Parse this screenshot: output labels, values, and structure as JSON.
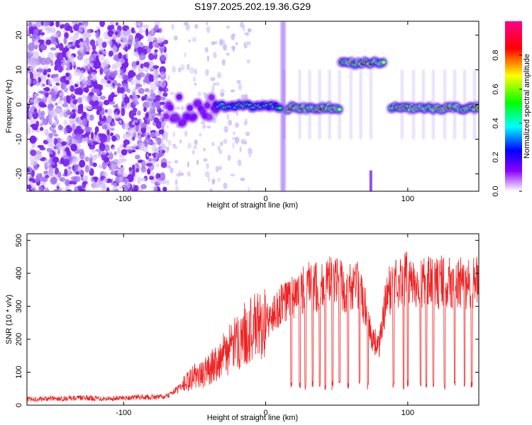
{
  "title": "S197.2025.202.19.36.G29",
  "chart_data": [
    {
      "type": "heatmap",
      "xlabel": "Height of straight line (km)",
      "ylabel": "Frequency (Hz)",
      "xlim": [
        -168,
        150
      ],
      "ylim": [
        -25,
        24
      ],
      "xticks": [
        -100,
        0,
        100
      ],
      "yticks": [
        -20,
        -10,
        0,
        10,
        20
      ],
      "colorbar": {
        "label": "Normalized spectral amplitude",
        "range": [
          0.0,
          1.0
        ],
        "ticks": [
          0.0,
          0.2,
          0.4,
          0.6,
          0.8
        ],
        "tick_labels": [
          "0.0",
          "0.2",
          "0.4",
          "0.6",
          "0.8"
        ],
        "colors": [
          "#ffffff",
          "#8a00ff",
          "#0000ff",
          "#00ffff",
          "#00ff00",
          "#ffff00",
          "#ff0000",
          "#ff0088"
        ]
      },
      "features": [
        {
          "x_range": [
            -168,
            -70
          ],
          "freq_range": [
            -25,
            24
          ],
          "amplitude": 0.05
        },
        {
          "x_range": [
            -70,
            -35
          ],
          "freq_center": -1.5,
          "amplitude": 0.3
        },
        {
          "x_range": [
            -35,
            10
          ],
          "freq_center": -0.5,
          "amplitude": 0.6
        },
        {
          "x_range": [
            15,
            52
          ],
          "freq_center": -1,
          "amplitude": 0.9
        },
        {
          "x_range": [
            53,
            83
          ],
          "freq_center": 12,
          "amplitude": 0.9
        },
        {
          "x_range": [
            88,
            150
          ],
          "freq_center": -1,
          "amplitude": 0.9
        }
      ]
    },
    {
      "type": "line",
      "xlabel": "Height of straight line (km)",
      "ylabel": "SNR (10 * v/v)",
      "xlim": [
        -168,
        150
      ],
      "ylim": [
        0,
        520
      ],
      "xticks": [
        -100,
        0,
        100
      ],
      "yticks": [
        0,
        100,
        200,
        300,
        400,
        500
      ],
      "color": "#ee2222",
      "series": [
        {
          "x": [
            -168,
            -150,
            -130,
            -110,
            -90,
            -70,
            -62,
            -55,
            -50,
            -45,
            -40,
            -35,
            -30,
            -25,
            -20,
            -15,
            -10,
            -5,
            0,
            5,
            10,
            15,
            20,
            25,
            30,
            35,
            40,
            45,
            50,
            55,
            60,
            65,
            70,
            75,
            80,
            85,
            90,
            95,
            100,
            105,
            110,
            115,
            120,
            125,
            130,
            135,
            140,
            145,
            150
          ],
          "y": [
            18,
            20,
            22,
            20,
            24,
            25,
            50,
            70,
            90,
            90,
            110,
            130,
            150,
            170,
            190,
            215,
            230,
            240,
            250,
            270,
            300,
            320,
            330,
            345,
            355,
            360,
            365,
            370,
            370,
            360,
            355,
            360,
            300,
            200,
            180,
            330,
            370,
            380,
            390,
            370,
            375,
            370,
            370,
            375,
            370,
            370,
            365,
            375,
            370
          ]
        }
      ]
    }
  ]
}
